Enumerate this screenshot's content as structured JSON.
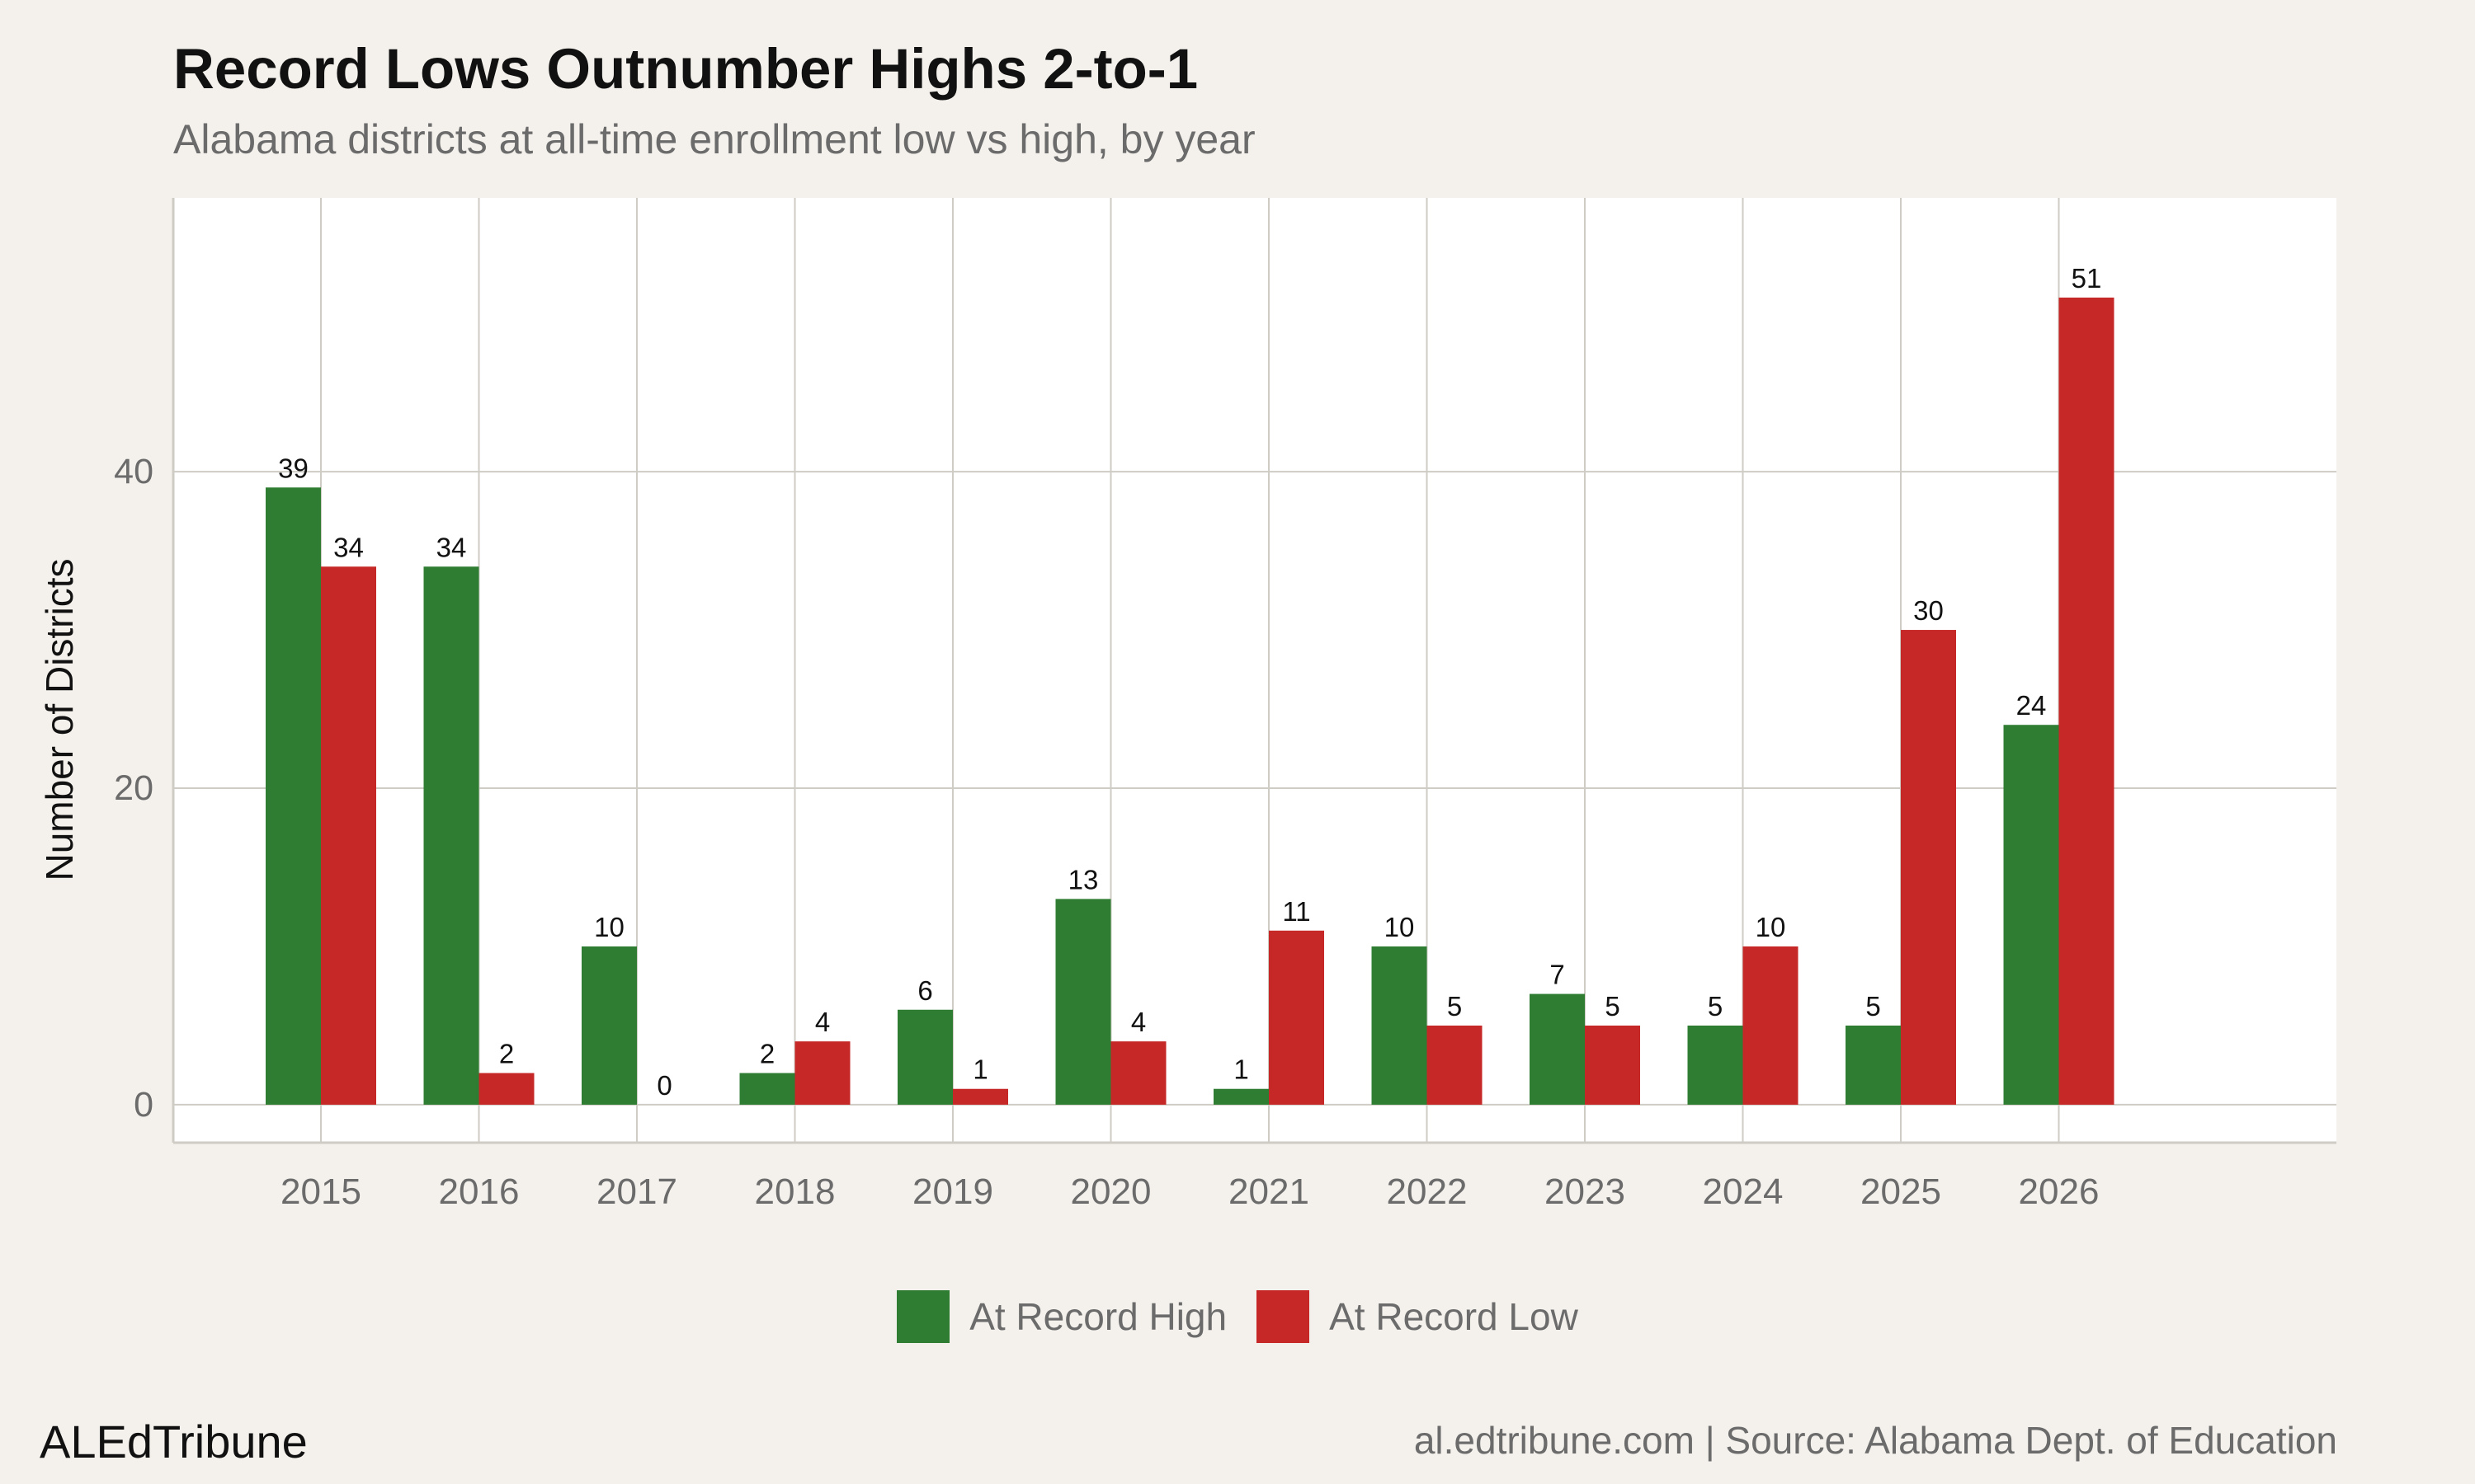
{
  "header": {
    "title": "Record Lows Outnumber Highs 2-to-1",
    "subtitle": "Alabama districts at all-time enrollment low vs high, by year"
  },
  "footer": {
    "brand": "ALEdTribune",
    "source": "al.edtribune.com | Source: Alabama Dept. of Education"
  },
  "colors": {
    "high": "#2e7d32",
    "low": "#c62828",
    "panel": "#ffffff",
    "background": "#f4f1ec",
    "grid": "#cfcbc5"
  },
  "chart_data": {
    "type": "bar",
    "title": "Record Lows Outnumber Highs 2-to-1",
    "subtitle": "Alabama districts at all-time enrollment low vs high, by year",
    "xlabel": "",
    "ylabel": "Number of Districts",
    "categories": [
      "2015",
      "2016",
      "2017",
      "2018",
      "2019",
      "2020",
      "2021",
      "2022",
      "2023",
      "2024",
      "2025",
      "2026"
    ],
    "series": [
      {
        "name": "At Record High",
        "color": "#2e7d32",
        "values": [
          39,
          34,
          10,
          2,
          6,
          13,
          1,
          10,
          7,
          5,
          5,
          24
        ]
      },
      {
        "name": "At Record Low",
        "color": "#c62828",
        "values": [
          34,
          2,
          0,
          4,
          1,
          4,
          11,
          5,
          5,
          10,
          30,
          51
        ]
      }
    ],
    "ylim": [
      -2.4,
      57.3
    ],
    "yticks": [
      0,
      20,
      40
    ],
    "grid": true,
    "legend_position": "bottom"
  }
}
